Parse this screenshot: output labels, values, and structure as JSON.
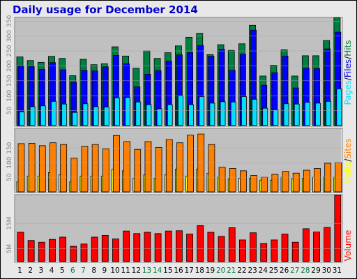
{
  "title": "Daily usage for December 2014",
  "colors": {
    "hits": "#008040",
    "files": "#0000ff",
    "pages": "#00e0ff",
    "visits": "#ffff00",
    "sites": "#ff8000",
    "volume": "#ff0000",
    "weekday_label": "#000000",
    "weekend_label": "#008040",
    "panel_bg": "#c0c0c0",
    "frame_bg": "#e8e8e8"
  },
  "right_labels": {
    "top": [
      "Pages",
      "Files",
      "Hits"
    ],
    "middle": [
      "Visits",
      "Sites"
    ],
    "bottom": [
      "Volume"
    ],
    "separator": "/"
  },
  "chart_data": [
    {
      "type": "bar",
      "panel": "hits-files-pages",
      "categories": [
        "1",
        "2",
        "3",
        "4",
        "5",
        "6",
        "7",
        "8",
        "9",
        "10",
        "11",
        "12",
        "13",
        "14",
        "15",
        "16",
        "17",
        "18",
        "19",
        "20",
        "21",
        "22",
        "23",
        "24",
        "25",
        "26",
        "27",
        "28",
        "29",
        "30",
        "31"
      ],
      "weekend_days": [
        "6",
        "7",
        "13",
        "14",
        "20",
        "21",
        "27",
        "28"
      ],
      "ylim": [
        0,
        360
      ],
      "yticks": [
        "50",
        "100",
        "150",
        "200",
        "250",
        "300",
        "350"
      ],
      "series": [
        {
          "name": "Hits",
          "values": [
            230,
            218,
            212,
            232,
            225,
            167,
            222,
            204,
            207,
            264,
            233,
            192,
            250,
            225,
            244,
            267,
            296,
            309,
            238,
            271,
            252,
            274,
            336,
            166,
            202,
            254,
            166,
            234,
            234,
            285,
            361
          ]
        },
        {
          "name": "Files",
          "values": [
            199,
            198,
            188,
            211,
            187,
            145,
            185,
            183,
            197,
            235,
            207,
            130,
            172,
            184,
            216,
            237,
            245,
            268,
            232,
            256,
            185,
            239,
            320,
            135,
            177,
            233,
            126,
            192,
            191,
            257,
            313
          ]
        },
        {
          "name": "Pages",
          "values": [
            46,
            63,
            66,
            81,
            72,
            44,
            73,
            63,
            62,
            93,
            94,
            79,
            70,
            56,
            70,
            100,
            70,
            97,
            75,
            80,
            79,
            97,
            88,
            58,
            53,
            73,
            72,
            78,
            75,
            81,
            123
          ]
        }
      ]
    },
    {
      "type": "bar",
      "panel": "visits-sites",
      "categories": [
        "1",
        "2",
        "3",
        "4",
        "5",
        "6",
        "7",
        "8",
        "9",
        "10",
        "11",
        "12",
        "13",
        "14",
        "15",
        "16",
        "17",
        "18",
        "19",
        "20",
        "21",
        "22",
        "23",
        "24",
        "25",
        "26",
        "27",
        "28",
        "29",
        "30",
        "31"
      ],
      "ylim": [
        0,
        215
      ],
      "yticks": [
        "50",
        "100",
        "150"
      ],
      "series": [
        {
          "name": "Visits",
          "values": [
            34,
            54,
            54,
            66,
            58,
            34,
            54,
            54,
            54,
            78,
            72,
            46,
            58,
            46,
            58,
            78,
            54,
            78,
            63,
            50,
            44,
            46,
            46,
            40,
            40,
            50,
            44,
            46,
            50,
            50,
            50
          ]
        },
        {
          "name": "Sites",
          "values": [
            165,
            166,
            158,
            168,
            162,
            115,
            156,
            162,
            147,
            193,
            172,
            145,
            172,
            152,
            179,
            168,
            194,
            198,
            162,
            84,
            80,
            72,
            56,
            50,
            60,
            70,
            64,
            74,
            80,
            98,
            100
          ]
        }
      ]
    },
    {
      "type": "bar",
      "panel": "volume",
      "categories": [
        "1",
        "2",
        "3",
        "4",
        "5",
        "6",
        "7",
        "8",
        "9",
        "10",
        "11",
        "12",
        "13",
        "14",
        "15",
        "16",
        "17",
        "18",
        "19",
        "20",
        "21",
        "22",
        "23",
        "24",
        "25",
        "26",
        "27",
        "28",
        "29",
        "30",
        "31"
      ],
      "ylim": [
        0,
        26
      ],
      "yticks": [
        "5M",
        "15M"
      ],
      "series": [
        {
          "name": "Volume",
          "values": [
            11.5,
            8.3,
            7.6,
            8.7,
            9.6,
            6.0,
            6.9,
            9.6,
            10.3,
            8.9,
            12.0,
            11.0,
            11.5,
            11.0,
            12.0,
            12.1,
            10.8,
            14.1,
            11.5,
            9.9,
            13.3,
            8.5,
            11.3,
            7.1,
            8.5,
            10.8,
            7.6,
            12.9,
            11.6,
            13.4,
            26.0
          ]
        }
      ]
    }
  ]
}
